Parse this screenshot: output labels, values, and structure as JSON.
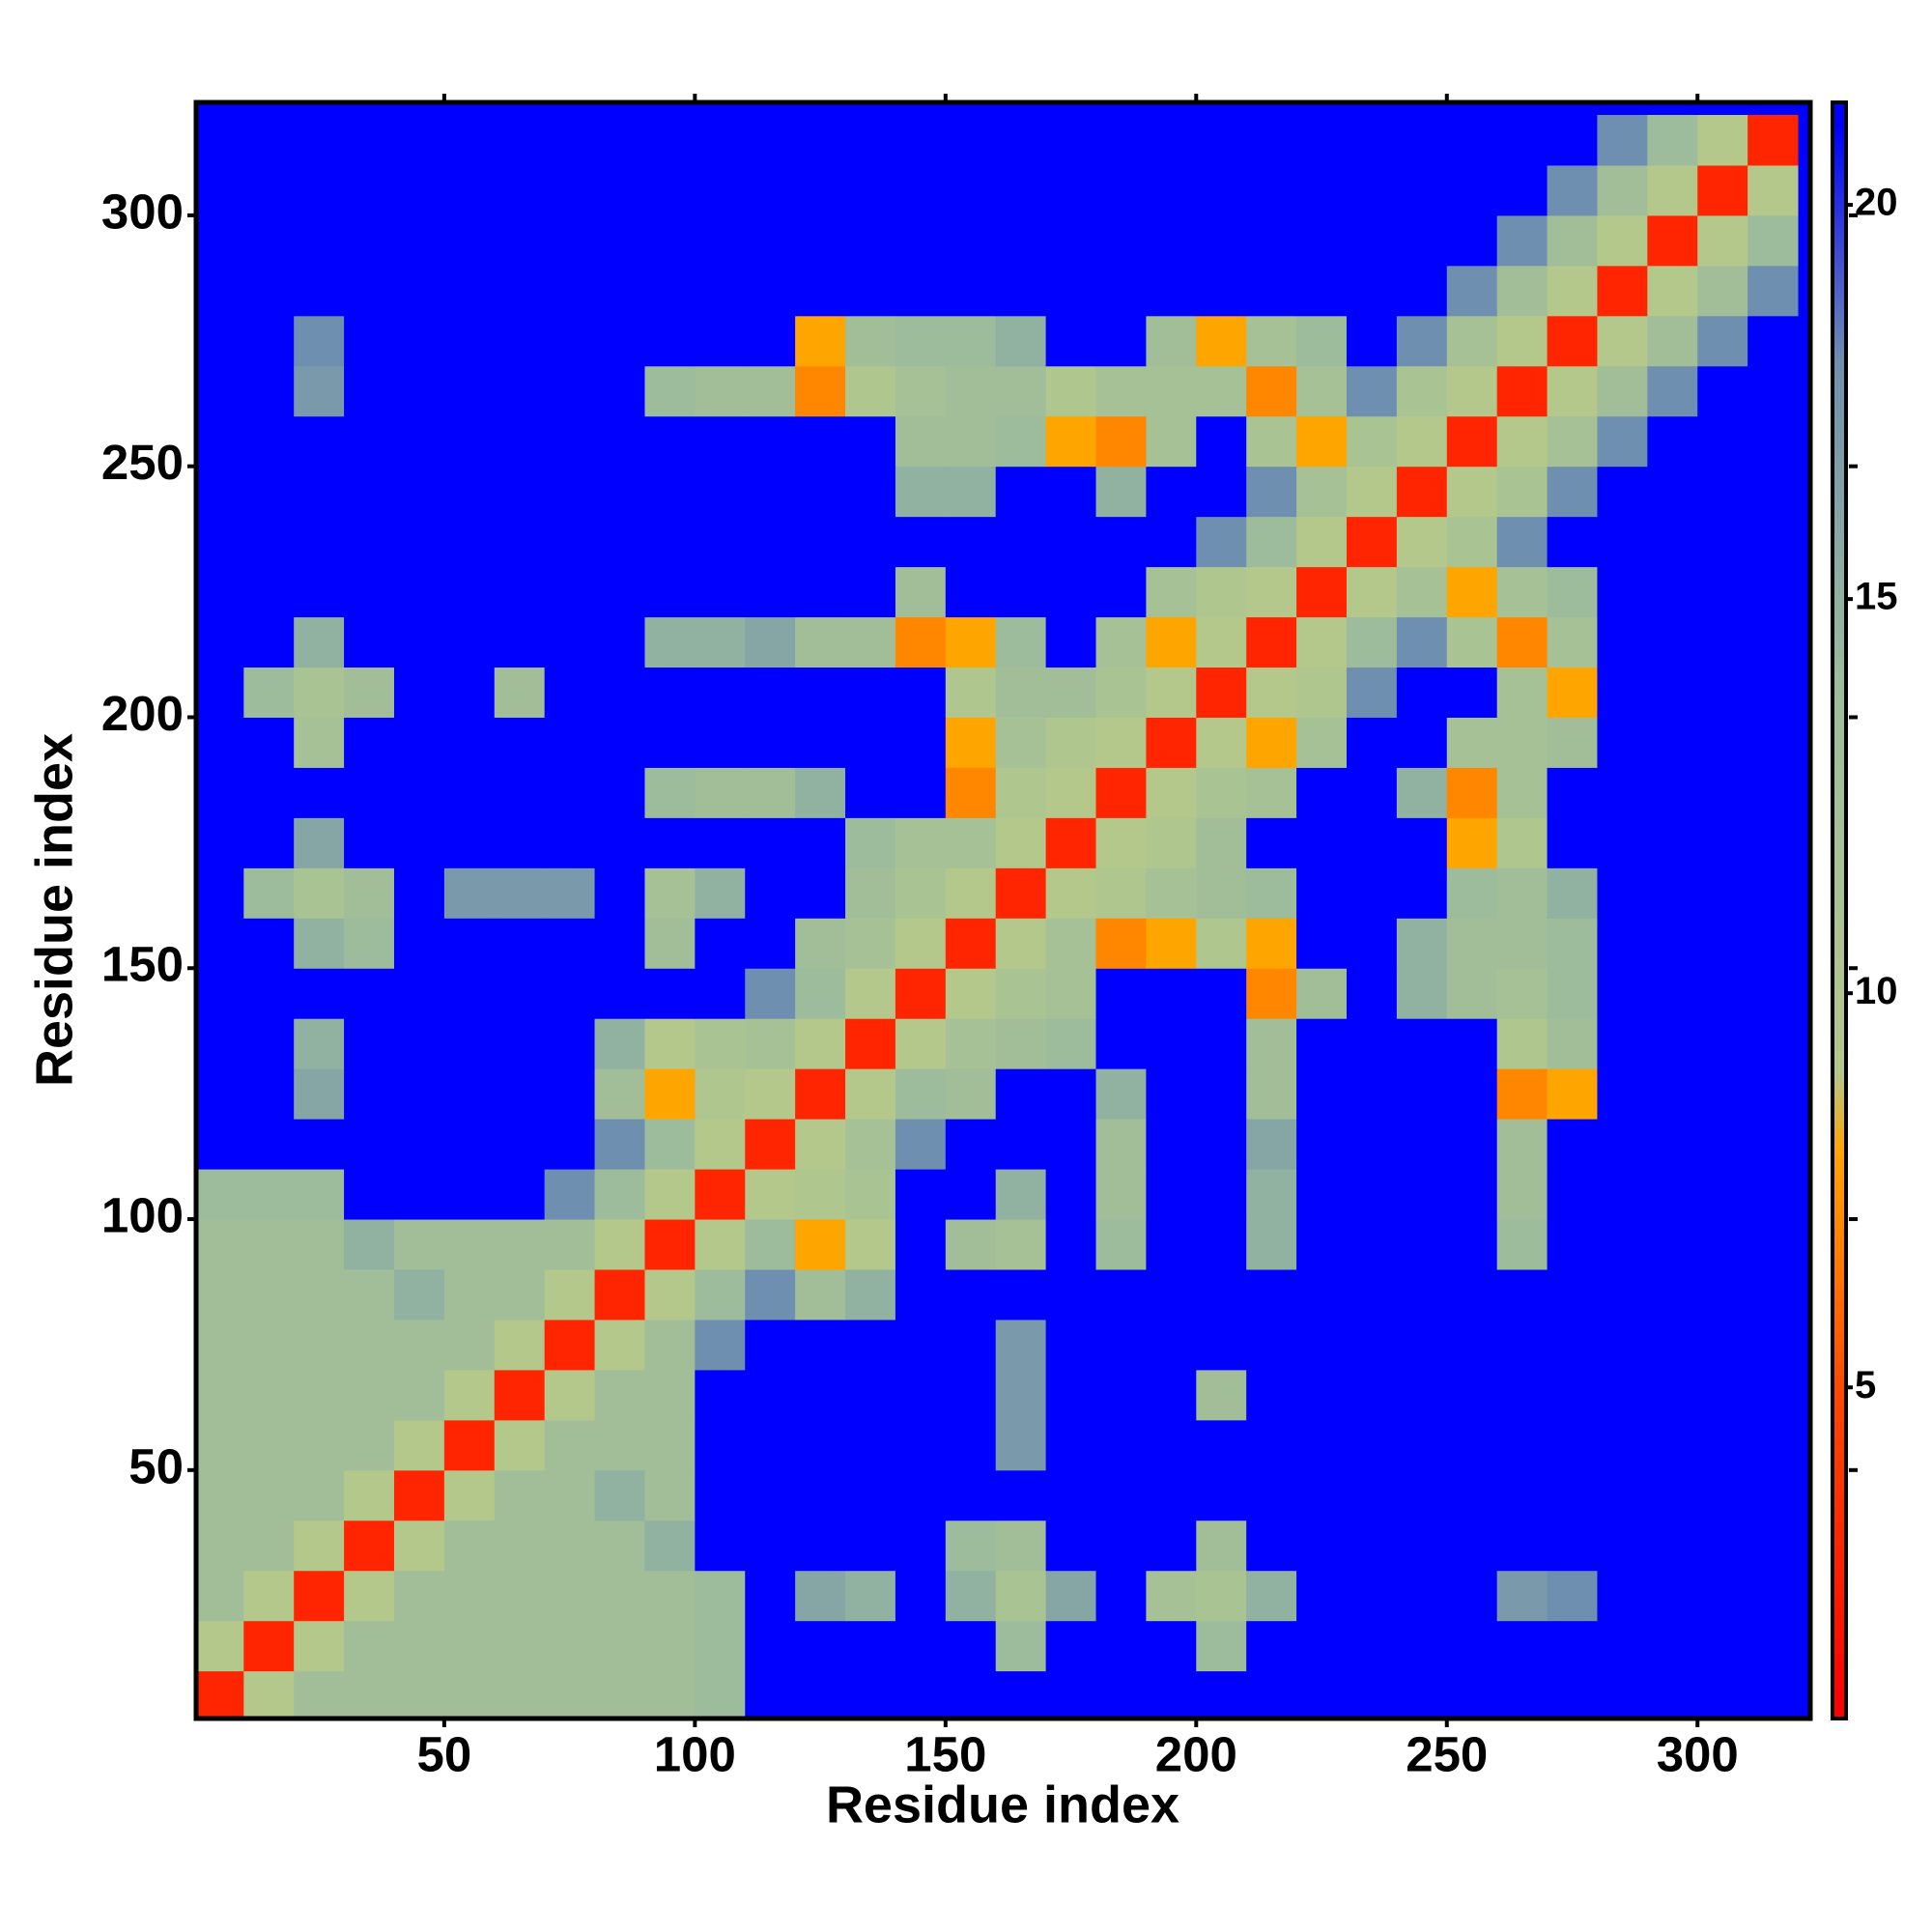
{
  "chart_data": {
    "type": "heatmap",
    "x_label": "Residue index",
    "y_label": "Residue index",
    "xlim": [
      0.5,
      322.5
    ],
    "ylim": [
      0.5,
      322.5
    ],
    "xticks": [
      50,
      100,
      150,
      200,
      250,
      300
    ],
    "yticks": [
      50,
      100,
      150,
      200,
      250,
      300
    ],
    "zlim": [
      0.8,
      21.3
    ],
    "colorbar_ticks": [
      5,
      10,
      15,
      20
    ],
    "colorscale": [
      [
        1,
        "#ff0000"
      ],
      [
        5,
        "#ff4a00"
      ],
      [
        8,
        "#ffa500"
      ],
      [
        9,
        "#b4c88c"
      ],
      [
        14,
        "#9cbc9c"
      ],
      [
        18,
        "#6f8fb0"
      ],
      [
        21,
        "#0000ff"
      ]
    ],
    "x": [
      5,
      15,
      25,
      35,
      45,
      55,
      65,
      75,
      85,
      95,
      105,
      115,
      125,
      135,
      145,
      155,
      165,
      175,
      185,
      195,
      205,
      215,
      225,
      235,
      245,
      255,
      265,
      275,
      285,
      295,
      305,
      315
    ],
    "y": [
      5,
      15,
      25,
      35,
      45,
      55,
      65,
      75,
      85,
      95,
      105,
      115,
      125,
      135,
      145,
      155,
      165,
      175,
      185,
      195,
      205,
      215,
      225,
      235,
      245,
      255,
      265,
      275,
      285,
      295,
      305,
      315
    ],
    "values": [
      [
        3,
        9,
        13,
        13,
        13,
        13,
        13,
        13,
        13,
        13,
        14,
        21,
        21,
        21,
        21,
        21,
        21,
        21,
        21,
        21,
        21,
        21,
        21,
        21,
        21,
        21,
        21,
        21,
        21,
        21,
        21,
        21
      ],
      [
        9,
        3,
        9,
        13,
        13,
        13,
        13,
        13,
        13,
        13,
        14,
        21,
        21,
        21,
        21,
        21,
        14,
        21,
        21,
        21,
        14,
        21,
        21,
        21,
        21,
        21,
        21,
        21,
        21,
        21,
        21,
        21
      ],
      [
        13,
        9,
        3,
        9,
        13,
        13,
        13,
        13,
        13,
        13,
        14,
        21,
        16,
        15,
        21,
        15,
        11,
        16,
        21,
        12,
        11,
        15,
        21,
        21,
        21,
        21,
        17,
        18,
        21,
        21,
        21,
        21
      ],
      [
        13,
        13,
        9,
        3,
        9,
        13,
        13,
        13,
        13,
        15,
        21,
        21,
        21,
        21,
        21,
        14,
        13,
        21,
        21,
        21,
        13,
        21,
        21,
        21,
        21,
        21,
        21,
        21,
        21,
        21,
        21,
        21
      ],
      [
        13,
        13,
        13,
        9,
        3,
        9,
        13,
        13,
        15,
        13,
        21,
        21,
        21,
        21,
        21,
        21,
        21,
        21,
        21,
        21,
        21,
        21,
        21,
        21,
        21,
        21,
        21,
        21,
        21,
        21,
        21,
        21
      ],
      [
        13,
        13,
        13,
        13,
        9,
        3,
        9,
        13,
        13,
        13,
        21,
        21,
        21,
        21,
        21,
        21,
        17,
        21,
        21,
        21,
        21,
        21,
        21,
        21,
        21,
        21,
        21,
        21,
        21,
        21,
        21,
        21
      ],
      [
        13,
        13,
        13,
        13,
        13,
        9,
        3,
        9,
        13,
        13,
        21,
        21,
        21,
        21,
        21,
        21,
        17,
        21,
        21,
        21,
        13,
        21,
        21,
        21,
        21,
        21,
        21,
        21,
        21,
        21,
        21,
        21
      ],
      [
        13,
        13,
        13,
        13,
        13,
        13,
        9,
        3,
        9,
        13,
        18,
        21,
        21,
        21,
        21,
        21,
        17,
        21,
        21,
        21,
        21,
        21,
        21,
        21,
        21,
        21,
        21,
        21,
        21,
        21,
        21,
        21
      ],
      [
        13,
        13,
        13,
        13,
        15,
        13,
        13,
        9,
        3,
        9,
        14,
        18,
        13,
        15,
        21,
        21,
        21,
        21,
        21,
        21,
        21,
        21,
        21,
        21,
        21,
        21,
        21,
        21,
        21,
        21,
        21,
        21
      ],
      [
        13,
        13,
        13,
        15,
        13,
        13,
        13,
        13,
        9,
        3,
        9,
        14,
        8,
        9,
        21,
        13,
        12,
        21,
        14,
        21,
        21,
        15,
        21,
        21,
        21,
        21,
        14,
        21,
        21,
        21,
        21,
        21
      ],
      [
        14,
        14,
        14,
        21,
        21,
        21,
        21,
        18,
        14,
        9,
        3,
        9,
        10,
        11,
        21,
        21,
        15,
        21,
        13,
        21,
        21,
        15,
        21,
        21,
        21,
        21,
        13,
        21,
        21,
        21,
        21,
        21
      ],
      [
        21,
        21,
        21,
        21,
        21,
        21,
        21,
        21,
        18,
        14,
        9,
        3,
        9,
        12,
        18,
        21,
        21,
        21,
        13,
        21,
        21,
        16,
        21,
        21,
        21,
        21,
        13,
        21,
        21,
        21,
        21,
        21
      ],
      [
        21,
        21,
        16,
        21,
        21,
        21,
        21,
        21,
        13,
        8,
        10,
        9,
        3,
        9,
        14,
        13,
        21,
        21,
        15,
        21,
        21,
        13,
        21,
        21,
        21,
        21,
        7,
        8,
        21,
        21,
        21,
        21
      ],
      [
        21,
        21,
        15,
        21,
        21,
        21,
        21,
        21,
        15,
        9,
        11,
        12,
        9,
        3,
        9,
        12,
        13,
        14,
        21,
        21,
        21,
        13,
        21,
        21,
        21,
        21,
        10,
        13,
        21,
        21,
        21,
        21
      ],
      [
        21,
        21,
        21,
        21,
        21,
        21,
        21,
        21,
        21,
        21,
        21,
        18,
        14,
        9,
        3,
        9,
        11,
        12,
        21,
        21,
        21,
        7,
        13,
        21,
        15,
        13,
        12,
        14,
        21,
        21,
        21,
        21
      ],
      [
        21,
        21,
        15,
        14,
        21,
        21,
        21,
        21,
        21,
        13,
        21,
        21,
        13,
        12,
        9,
        3,
        9,
        12,
        7,
        8,
        10,
        8,
        21,
        21,
        15,
        13,
        13,
        14,
        21,
        21,
        21,
        21
      ],
      [
        21,
        14,
        11,
        13,
        21,
        17,
        17,
        17,
        21,
        12,
        15,
        21,
        21,
        13,
        11,
        9,
        3,
        9,
        10,
        12,
        13,
        14,
        21,
        21,
        21,
        14,
        13,
        15,
        21,
        21,
        21,
        21
      ],
      [
        21,
        21,
        16,
        21,
        21,
        21,
        21,
        21,
        21,
        21,
        21,
        21,
        21,
        14,
        12,
        12,
        9,
        3,
        9,
        10,
        13,
        21,
        21,
        21,
        21,
        8,
        10,
        21,
        21,
        21,
        21,
        21
      ],
      [
        21,
        21,
        21,
        21,
        21,
        21,
        21,
        21,
        21,
        14,
        13,
        13,
        15,
        21,
        21,
        7,
        10,
        9,
        3,
        9,
        11,
        12,
        21,
        21,
        15,
        7,
        12,
        21,
        21,
        21,
        21,
        21
      ],
      [
        21,
        21,
        12,
        21,
        21,
        21,
        21,
        21,
        21,
        21,
        21,
        21,
        21,
        21,
        21,
        8,
        12,
        10,
        9,
        3,
        9,
        8,
        12,
        21,
        21,
        12,
        12,
        13,
        21,
        21,
        21,
        21
      ],
      [
        21,
        14,
        11,
        13,
        21,
        21,
        13,
        21,
        21,
        21,
        21,
        21,
        21,
        21,
        21,
        10,
        13,
        13,
        11,
        9,
        3,
        9,
        10,
        18,
        21,
        21,
        12,
        8,
        21,
        21,
        21,
        21
      ],
      [
        21,
        21,
        15,
        21,
        21,
        21,
        21,
        21,
        21,
        15,
        15,
        16,
        13,
        13,
        7,
        8,
        14,
        21,
        12,
        8,
        9,
        3,
        9,
        14,
        18,
        11,
        7,
        12,
        21,
        21,
        21,
        21
      ],
      [
        21,
        21,
        21,
        21,
        21,
        21,
        21,
        21,
        21,
        21,
        21,
        21,
        21,
        21,
        13,
        21,
        21,
        21,
        21,
        12,
        10,
        9,
        3,
        9,
        12,
        8,
        12,
        14,
        21,
        21,
        21,
        21
      ],
      [
        21,
        21,
        21,
        21,
        21,
        21,
        21,
        21,
        21,
        21,
        21,
        21,
        21,
        21,
        21,
        21,
        21,
        21,
        21,
        21,
        18,
        14,
        9,
        3,
        9,
        11,
        18,
        21,
        21,
        21,
        21,
        21
      ],
      [
        21,
        21,
        21,
        21,
        21,
        21,
        21,
        21,
        21,
        21,
        21,
        21,
        21,
        21,
        15,
        15,
        21,
        21,
        15,
        21,
        21,
        18,
        12,
        9,
        3,
        9,
        11,
        18,
        21,
        21,
        21,
        21
      ],
      [
        21,
        21,
        21,
        21,
        21,
        21,
        21,
        21,
        21,
        21,
        21,
        21,
        21,
        21,
        13,
        13,
        14,
        8,
        7,
        12,
        21,
        11,
        8,
        11,
        9,
        3,
        9,
        12,
        18,
        21,
        21,
        21
      ],
      [
        21,
        21,
        17,
        21,
        21,
        21,
        21,
        21,
        21,
        14,
        13,
        13,
        7,
        10,
        12,
        13,
        13,
        10,
        12,
        12,
        12,
        7,
        12,
        18,
        11,
        9,
        3,
        9,
        13,
        18,
        21,
        21
      ],
      [
        21,
        21,
        18,
        21,
        21,
        21,
        21,
        21,
        21,
        21,
        21,
        21,
        8,
        13,
        14,
        14,
        15,
        21,
        21,
        13,
        8,
        12,
        14,
        21,
        18,
        12,
        9,
        3,
        9,
        13,
        18,
        21
      ],
      [
        21,
        21,
        21,
        21,
        21,
        21,
        21,
        21,
        21,
        21,
        21,
        21,
        21,
        21,
        21,
        21,
        21,
        21,
        21,
        21,
        21,
        21,
        21,
        21,
        21,
        18,
        13,
        9,
        3,
        9,
        13,
        18
      ],
      [
        21,
        21,
        21,
        21,
        21,
        21,
        21,
        21,
        21,
        21,
        21,
        21,
        21,
        21,
        21,
        21,
        21,
        21,
        21,
        21,
        21,
        21,
        21,
        21,
        21,
        21,
        18,
        13,
        9,
        3,
        9,
        14
      ],
      [
        21,
        21,
        21,
        21,
        21,
        21,
        21,
        21,
        21,
        21,
        21,
        21,
        21,
        21,
        21,
        21,
        21,
        21,
        21,
        21,
        21,
        21,
        21,
        21,
        21,
        21,
        21,
        18,
        13,
        9,
        3,
        9
      ],
      [
        21,
        21,
        21,
        21,
        21,
        21,
        21,
        21,
        21,
        21,
        21,
        21,
        21,
        21,
        21,
        21,
        21,
        21,
        21,
        21,
        21,
        21,
        21,
        21,
        21,
        21,
        21,
        21,
        18,
        14,
        9,
        3
      ]
    ]
  }
}
